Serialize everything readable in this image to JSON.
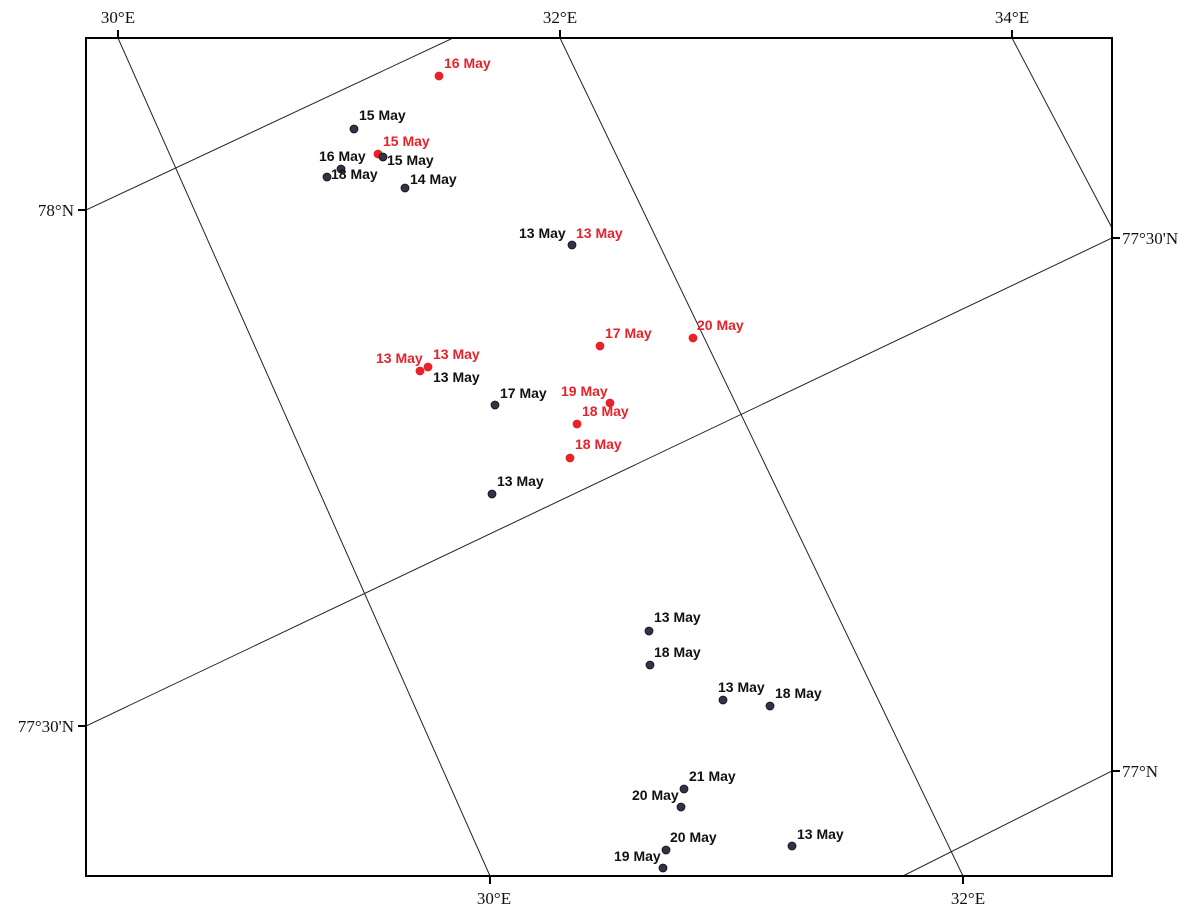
{
  "map": {
    "top_labels": [
      "30°E",
      "32°E",
      "34°E"
    ],
    "bottom_labels": [
      "30°E",
      "32°E"
    ],
    "left_labels": [
      "78°N",
      "77°30'N"
    ],
    "right_labels": [
      "77°30'N",
      "77°N"
    ]
  },
  "colors": {
    "frame": "#000000",
    "graticule": "#222222",
    "black_label": "#111111",
    "red_label": "#e8222a",
    "red_marker": "#e8222a",
    "dark_marker": "#3a2f45"
  },
  "observations": [
    {
      "label": "16 May",
      "color": "red"
    },
    {
      "label": "15 May",
      "color": "black"
    },
    {
      "label": "15 May",
      "color": "red"
    },
    {
      "label": "16 May",
      "color": "black"
    },
    {
      "label": "15 May",
      "color": "black"
    },
    {
      "label": "18 May",
      "color": "black"
    },
    {
      "label": "14 May",
      "color": "black"
    },
    {
      "label": "13 May",
      "color": "black"
    },
    {
      "label": "13 May",
      "color": "red"
    },
    {
      "label": "17 May",
      "color": "red"
    },
    {
      "label": "20 May",
      "color": "red"
    },
    {
      "label": "13 May",
      "color": "red"
    },
    {
      "label": "13 May",
      "color": "red"
    },
    {
      "label": "13 May",
      "color": "black"
    },
    {
      "label": "17 May",
      "color": "black"
    },
    {
      "label": "19 May",
      "color": "red"
    },
    {
      "label": "18 May",
      "color": "red"
    },
    {
      "label": "18 May",
      "color": "red"
    },
    {
      "label": "13 May",
      "color": "black"
    },
    {
      "label": "13 May",
      "color": "black"
    },
    {
      "label": "18 May",
      "color": "black"
    },
    {
      "label": "13 May",
      "color": "black"
    },
    {
      "label": "18 May",
      "color": "black"
    },
    {
      "label": "21 May",
      "color": "black"
    },
    {
      "label": "20 May",
      "color": "black"
    },
    {
      "label": "20 May",
      "color": "black"
    },
    {
      "label": "13 May",
      "color": "black"
    },
    {
      "label": "19 May",
      "color": "black"
    }
  ]
}
